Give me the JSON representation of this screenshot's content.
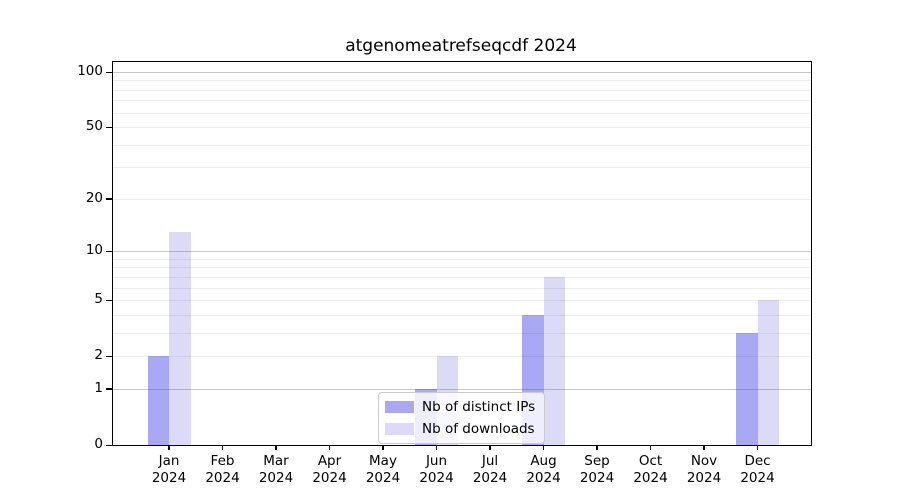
{
  "title": "atgenomeatrefseqcdf 2024",
  "chart_data": {
    "type": "bar",
    "title": "atgenomeatrefseqcdf 2024",
    "categories": [
      "Jan 2024",
      "Feb 2024",
      "Mar 2024",
      "Apr 2024",
      "May 2024",
      "Jun 2024",
      "Jul 2024",
      "Aug 2024",
      "Sep 2024",
      "Oct 2024",
      "Nov 2024",
      "Dec 2024"
    ],
    "series": [
      {
        "name": "Nb of distinct IPs",
        "color": "#a8a8f5",
        "values": [
          2,
          0,
          0,
          0,
          0,
          1,
          0,
          4,
          0,
          0,
          0,
          3
        ]
      },
      {
        "name": "Nb of downloads",
        "color": "#dbdbf8",
        "values": [
          13,
          0,
          0,
          0,
          0,
          2,
          0,
          7,
          0,
          0,
          0,
          5
        ]
      }
    ],
    "xlabel": "",
    "ylabel": "",
    "y_scale": "log1p",
    "ylim": [
      0,
      114
    ],
    "y_tick_values": [
      0,
      1,
      2,
      5,
      10,
      20,
      50,
      100
    ],
    "y_major_gridlines": [
      1,
      10,
      100
    ],
    "y_minor_gridlines": [
      2,
      3,
      4,
      5,
      6,
      7,
      8,
      9,
      20,
      30,
      40,
      50,
      60,
      70,
      80,
      90
    ],
    "grid": "on",
    "legend_position": "lower center",
    "legend_labels": [
      "Nb of distinct IPs",
      "Nb of downloads"
    ]
  }
}
